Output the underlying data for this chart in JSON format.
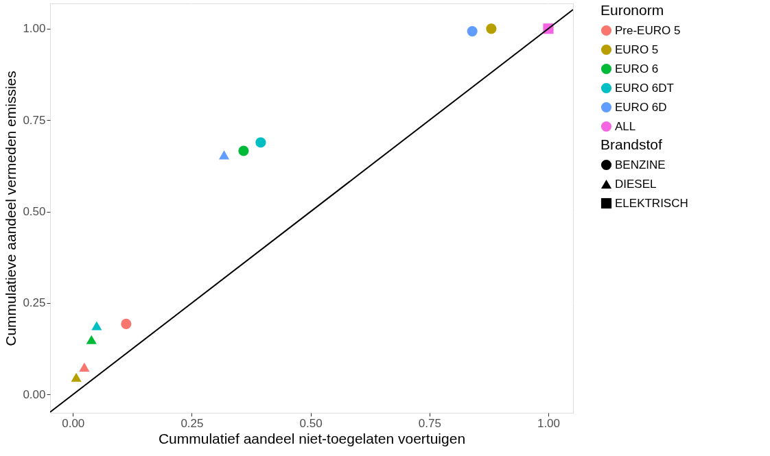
{
  "chart_data": {
    "type": "scatter",
    "xlabel": "Cummulatief aandeel niet-toegelaten voertuigen",
    "ylabel": "Cummulatieve aandeel vermeden emissies",
    "legend_title": [
      "Euronorm",
      "Brandstof"
    ],
    "xlim": [
      -0.048,
      1.052
    ],
    "ylim": [
      -0.05,
      1.069
    ],
    "xticks": [
      {
        "value": 0,
        "label": "0.00"
      },
      {
        "value": 0.25,
        "label": "0.25"
      },
      {
        "value": 0.5,
        "label": "0.50"
      },
      {
        "value": 0.75,
        "label": "0.75"
      },
      {
        "value": 1,
        "label": "1.00"
      }
    ],
    "yticks": [
      {
        "value": 0,
        "label": "0.00"
      },
      {
        "value": 0.25,
        "label": "0.25"
      },
      {
        "value": 0.5,
        "label": "0.50"
      },
      {
        "value": 0.75,
        "label": "0.75"
      },
      {
        "value": 1,
        "label": "1.00"
      }
    ],
    "grid": true,
    "legend": "right",
    "series": [
      {
        "name": "Pre-EURO 5",
        "color": "#f8766d",
        "marker": [
          "circle",
          "triangle"
        ],
        "x": [
          0.112,
          0.024
        ],
        "values": [
          0.193,
          0.075
        ]
      },
      {
        "name": "EURO 5",
        "color": "#b79f00",
        "marker": [
          "circle",
          "triangle"
        ],
        "x": [
          0.88,
          0.007
        ],
        "values": [
          1.0,
          0.047
        ]
      },
      {
        "name": "EURO 6",
        "color": "#00ba38",
        "marker": [
          "circle",
          "triangle"
        ],
        "x": [
          0.359,
          0.039
        ],
        "values": [
          0.666,
          0.15
        ]
      },
      {
        "name": "EURO 6DT",
        "color": "#00bfc4",
        "marker": [
          "circle",
          "triangle"
        ],
        "x": [
          0.395,
          0.05
        ],
        "values": [
          0.689,
          0.188
        ]
      },
      {
        "name": "EURO 6D",
        "color": "#619cff",
        "marker": [
          "circle",
          "triangle"
        ],
        "x": [
          0.84,
          0.318
        ],
        "values": [
          0.993,
          0.655
        ]
      },
      {
        "name": "ALL",
        "color": "#f564e3",
        "marker": [
          "square"
        ],
        "x": [
          1.0
        ],
        "values": [
          1.0
        ]
      },
      {
        "name": "BENZINE",
        "color": "#000000",
        "marker": "circle"
      },
      {
        "name": "DIESEL",
        "color": "#000000",
        "marker": "triangle"
      },
      {
        "name": "ELEKTRISCH",
        "color": "#000000",
        "marker": "square"
      },
      {
        "type": "line",
        "color": "#000000",
        "line_style": "solid",
        "x": [
          -0.048,
          1.052
        ],
        "values": [
          -0.048,
          1.052
        ]
      }
    ]
  }
}
